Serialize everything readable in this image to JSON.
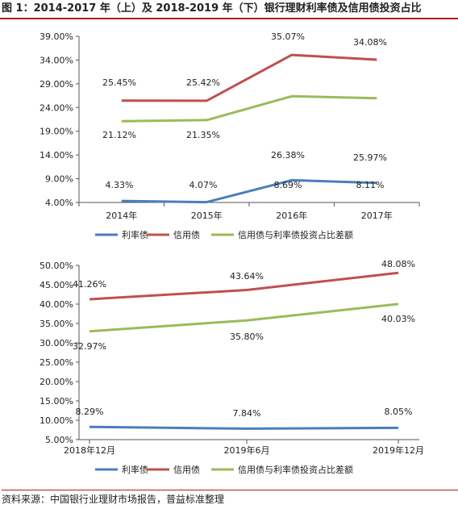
{
  "figure_title": "图 1：2014-2017 年（上）及 2018-2019 年（下）银行理财利率债及信用债投资占比",
  "source": "资料来源：中国银行业理财市场报告，普益标准整理",
  "chart_data": [
    {
      "type": "line",
      "categories": [
        "2014年",
        "2015年",
        "2016年",
        "2017年"
      ],
      "ylim": [
        4,
        39
      ],
      "yticks": [
        "4.00%",
        "9.00%",
        "14.00%",
        "19.00%",
        "24.00%",
        "29.00%",
        "34.00%",
        "39.00%"
      ],
      "grid": false,
      "legend": "bottom",
      "series": [
        {
          "name": "利率债",
          "color": "#4a7ebb",
          "values": [
            4.33,
            4.07,
            8.69,
            8.11
          ],
          "labels": [
            "4.33%",
            "4.07%",
            "8.69%",
            "8.11%"
          ]
        },
        {
          "name": "信用债",
          "color": "#c0504d",
          "values": [
            25.45,
            25.42,
            35.07,
            34.08
          ],
          "labels": [
            "25.45%",
            "25.42%",
            "35.07%",
            "34.08%"
          ]
        },
        {
          "name": "信用债与利率债投资占比差额",
          "color": "#9bbb59",
          "values": [
            21.12,
            21.35,
            26.38,
            25.97
          ],
          "labels": [
            "21.12%",
            "21.35%",
            "26.38%",
            "25.97%"
          ]
        }
      ]
    },
    {
      "type": "line",
      "categories": [
        "2018年12月",
        "2019年6月",
        "2019年12月"
      ],
      "ylim": [
        5,
        50
      ],
      "yticks": [
        "5.00%",
        "10.00%",
        "15.00%",
        "20.00%",
        "25.00%",
        "30.00%",
        "35.00%",
        "40.00%",
        "45.00%",
        "50.00%"
      ],
      "grid": false,
      "legend": "bottom",
      "series": [
        {
          "name": "利率债",
          "color": "#4a7ebb",
          "values": [
            8.29,
            7.84,
            8.05
          ],
          "labels": [
            "8.29%",
            "7.84%",
            "8.05%"
          ]
        },
        {
          "name": "信用债",
          "color": "#c0504d",
          "values": [
            41.26,
            43.64,
            48.08
          ],
          "labels": [
            "41.26%",
            "43.64%",
            "48.08%"
          ]
        },
        {
          "name": "信用债与利率债投资占比差额",
          "color": "#9bbb59",
          "values": [
            32.97,
            35.8,
            40.03
          ],
          "labels": [
            "32.97%",
            "35.80%",
            "40.03%"
          ]
        }
      ]
    }
  ]
}
